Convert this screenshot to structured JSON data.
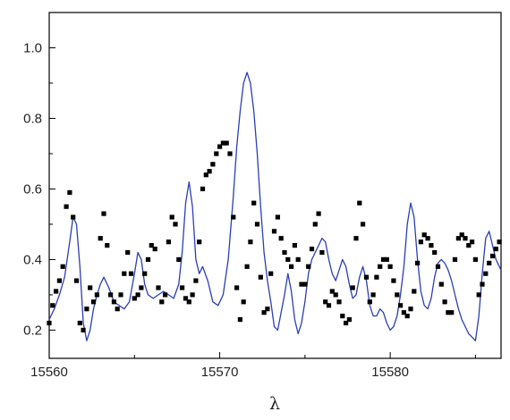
{
  "chart_data": {
    "type": "line",
    "title": "",
    "xlabel": "λ",
    "ylabel": "",
    "xlim": [
      15560,
      15586.5
    ],
    "ylim": [
      0.12,
      1.1
    ],
    "x_ticks": [
      15560,
      15570,
      15580
    ],
    "x_tick_labels": [
      "15560",
      "15570",
      "15580"
    ],
    "y_ticks": [
      0.2,
      0.4,
      0.6,
      0.8,
      1.0
    ],
    "y_tick_labels": [
      "0.2",
      "0.4",
      "0.6",
      "0.8",
      "1.0"
    ],
    "grid": false,
    "legend": "none",
    "series": [
      {
        "style": "markers",
        "marker": "square",
        "color": "#000000",
        "x": [
          15560.0,
          15560.2,
          15560.4,
          15560.6,
          15560.8,
          15561.0,
          15561.2,
          15561.4,
          15561.6,
          15561.8,
          15562.0,
          15562.2,
          15562.4,
          15562.6,
          15562.8,
          15563.0,
          15563.2,
          15563.4,
          15563.6,
          15563.8,
          15564.0,
          15564.2,
          15564.4,
          15564.6,
          15564.8,
          15565.0,
          15565.2,
          15565.4,
          15565.6,
          15565.8,
          15566.0,
          15566.2,
          15566.4,
          15566.6,
          15566.8,
          15567.0,
          15567.2,
          15567.4,
          15567.6,
          15567.8,
          15568.0,
          15568.2,
          15568.4,
          15568.6,
          15568.8,
          15569.0,
          15569.2,
          15569.4,
          15569.6,
          15569.8,
          15570.0,
          15570.2,
          15570.4,
          15570.6,
          15570.8,
          15571.0,
          15571.2,
          15571.4,
          15571.6,
          15571.8,
          15572.0,
          15572.2,
          15572.4,
          15572.6,
          15572.8,
          15573.0,
          15573.2,
          15573.4,
          15573.6,
          15573.8,
          15574.0,
          15574.2,
          15574.4,
          15574.6,
          15574.8,
          15575.0,
          15575.2,
          15575.4,
          15575.6,
          15575.8,
          15576.0,
          15576.2,
          15576.4,
          15576.6,
          15576.8,
          15577.0,
          15577.2,
          15577.4,
          15577.6,
          15577.8,
          15578.0,
          15578.2,
          15578.4,
          15578.6,
          15578.8,
          15579.0,
          15579.2,
          15579.4,
          15579.6,
          15579.8,
          15580.0,
          15580.2,
          15580.4,
          15580.6,
          15580.8,
          15581.0,
          15581.2,
          15581.4,
          15581.6,
          15581.8,
          15582.0,
          15582.2,
          15582.4,
          15582.6,
          15582.8,
          15583.0,
          15583.2,
          15583.4,
          15583.6,
          15583.8,
          15584.0,
          15584.2,
          15584.4,
          15584.6,
          15584.8,
          15585.0,
          15585.2,
          15585.4,
          15585.6,
          15585.8,
          15586.0,
          15586.2,
          15586.4
        ],
        "y": [
          0.22,
          0.27,
          0.31,
          0.34,
          0.38,
          0.55,
          0.59,
          0.52,
          0.34,
          0.22,
          0.2,
          0.26,
          0.32,
          0.28,
          0.3,
          0.46,
          0.53,
          0.44,
          0.3,
          0.28,
          0.26,
          0.3,
          0.36,
          0.42,
          0.36,
          0.29,
          0.3,
          0.32,
          0.36,
          0.4,
          0.44,
          0.43,
          0.32,
          0.28,
          0.3,
          0.45,
          0.52,
          0.5,
          0.4,
          0.32,
          0.29,
          0.28,
          0.3,
          0.34,
          0.45,
          0.6,
          0.64,
          0.65,
          0.67,
          0.7,
          0.72,
          0.73,
          0.73,
          0.7,
          0.52,
          0.32,
          0.23,
          0.28,
          0.38,
          0.45,
          0.56,
          0.5,
          0.35,
          0.25,
          0.26,
          0.36,
          0.48,
          0.52,
          0.46,
          0.42,
          0.4,
          0.38,
          0.44,
          0.4,
          0.33,
          0.33,
          0.38,
          0.43,
          0.5,
          0.53,
          0.42,
          0.28,
          0.27,
          0.31,
          0.3,
          0.28,
          0.24,
          0.22,
          0.23,
          0.32,
          0.46,
          0.56,
          0.5,
          0.35,
          0.28,
          0.3,
          0.35,
          0.38,
          0.4,
          0.4,
          0.38,
          0.34,
          0.3,
          0.27,
          0.25,
          0.24,
          0.26,
          0.31,
          0.39,
          0.45,
          0.47,
          0.46,
          0.44,
          0.42,
          0.38,
          0.33,
          0.28,
          0.25,
          0.25,
          0.4,
          0.46,
          0.47,
          0.46,
          0.44,
          0.45,
          0.4,
          0.3,
          0.33,
          0.36,
          0.39,
          0.41,
          0.43,
          0.45
        ]
      },
      {
        "style": "line",
        "color": "#2a3fb3",
        "x": [
          15560.0,
          15560.3,
          15560.6,
          15560.9,
          15561.2,
          15561.4,
          15561.6,
          15561.8,
          15562.0,
          15562.2,
          15562.4,
          15562.6,
          15562.8,
          15563.0,
          15563.2,
          15563.5,
          15563.8,
          15564.1,
          15564.4,
          15564.7,
          15565.0,
          15565.2,
          15565.4,
          15565.6,
          15565.8,
          15566.1,
          15566.4,
          15566.7,
          15567.0,
          15567.3,
          15567.6,
          15567.8,
          15568.0,
          15568.2,
          15568.4,
          15568.6,
          15568.8,
          15569.0,
          15569.3,
          15569.6,
          15569.9,
          15570.2,
          15570.5,
          15570.8,
          15571.0,
          15571.2,
          15571.4,
          15571.6,
          15571.8,
          15572.0,
          15572.2,
          15572.4,
          15572.6,
          15572.8,
          15573.0,
          15573.2,
          15573.4,
          15573.6,
          15573.8,
          15574.0,
          15574.2,
          15574.4,
          15574.6,
          15574.8,
          15575.0,
          15575.2,
          15575.4,
          15575.6,
          15575.8,
          15576.0,
          15576.2,
          15576.4,
          15576.6,
          15576.8,
          15577.0,
          15577.2,
          15577.4,
          15577.6,
          15577.8,
          15578.0,
          15578.2,
          15578.4,
          15578.6,
          15578.8,
          15579.0,
          15579.2,
          15579.4,
          15579.6,
          15579.8,
          15580.0,
          15580.2,
          15580.4,
          15580.6,
          15580.8,
          15581.0,
          15581.2,
          15581.4,
          15581.6,
          15581.8,
          15582.0,
          15582.2,
          15582.4,
          15582.6,
          15582.8,
          15583.0,
          15583.2,
          15583.4,
          15583.6,
          15583.8,
          15584.0,
          15584.2,
          15584.4,
          15584.6,
          15584.8,
          15585.0,
          15585.2,
          15585.4,
          15585.6,
          15585.8,
          15586.0,
          15586.2,
          15586.5
        ],
        "y": [
          0.23,
          0.26,
          0.3,
          0.35,
          0.45,
          0.52,
          0.5,
          0.38,
          0.22,
          0.17,
          0.2,
          0.26,
          0.3,
          0.33,
          0.35,
          0.32,
          0.28,
          0.27,
          0.26,
          0.28,
          0.36,
          0.42,
          0.4,
          0.33,
          0.3,
          0.29,
          0.3,
          0.31,
          0.3,
          0.29,
          0.33,
          0.42,
          0.56,
          0.62,
          0.55,
          0.4,
          0.36,
          0.38,
          0.34,
          0.28,
          0.27,
          0.3,
          0.4,
          0.58,
          0.72,
          0.82,
          0.9,
          0.93,
          0.9,
          0.82,
          0.7,
          0.55,
          0.42,
          0.34,
          0.28,
          0.21,
          0.2,
          0.25,
          0.3,
          0.36,
          0.31,
          0.23,
          0.19,
          0.22,
          0.28,
          0.36,
          0.4,
          0.42,
          0.44,
          0.46,
          0.45,
          0.4,
          0.36,
          0.34,
          0.37,
          0.4,
          0.38,
          0.33,
          0.29,
          0.3,
          0.35,
          0.38,
          0.34,
          0.27,
          0.24,
          0.24,
          0.26,
          0.25,
          0.22,
          0.2,
          0.21,
          0.24,
          0.3,
          0.38,
          0.5,
          0.56,
          0.52,
          0.4,
          0.31,
          0.27,
          0.26,
          0.29,
          0.35,
          0.39,
          0.4,
          0.39,
          0.37,
          0.34,
          0.3,
          0.26,
          0.23,
          0.21,
          0.19,
          0.18,
          0.17,
          0.24,
          0.36,
          0.46,
          0.48,
          0.44,
          0.4,
          0.37
        ]
      }
    ]
  }
}
